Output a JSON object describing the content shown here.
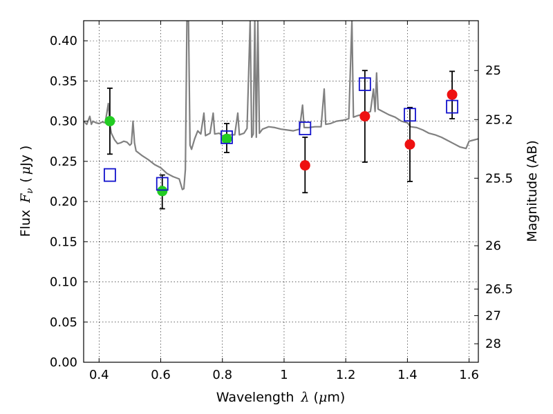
{
  "chart_data": {
    "type": "scatter",
    "xlabel": "Wavelength",
    "xlabel_symbol": "λ",
    "xlabel_unit_open": "(",
    "xlabel_unit_mu": "μ",
    "xlabel_unit_rest": "m)",
    "ylabel": "Flux",
    "ylabel_symbol": "F",
    "ylabel_subscript": "ν",
    "ylabel_unit_open": "(",
    "ylabel_unit_mu": "μ",
    "ylabel_unit_rest": "Jy )",
    "ylabel_right": "Magnitude (AB)",
    "xlim": [
      0.35,
      1.63
    ],
    "ylim": [
      0.0,
      0.425
    ],
    "grid": true,
    "x_ticks": [
      {
        "value": 0.4,
        "label": "0.4"
      },
      {
        "value": 0.6,
        "label": "0.6"
      },
      {
        "value": 0.8,
        "label": "0.8"
      },
      {
        "value": 1.0,
        "label": "1"
      },
      {
        "value": 1.2,
        "label": "1.2"
      },
      {
        "value": 1.4,
        "label": "1.4"
      },
      {
        "value": 1.6,
        "label": "1.6"
      }
    ],
    "y_ticks": [
      {
        "value": 0.0,
        "label": "0.00"
      },
      {
        "value": 0.05,
        "label": "0.05"
      },
      {
        "value": 0.1,
        "label": "0.10"
      },
      {
        "value": 0.15,
        "label": "0.15"
      },
      {
        "value": 0.2,
        "label": "0.20"
      },
      {
        "value": 0.25,
        "label": "0.25"
      },
      {
        "value": 0.3,
        "label": "0.30"
      },
      {
        "value": 0.35,
        "label": "0.35"
      },
      {
        "value": 0.4,
        "label": "0.40"
      }
    ],
    "right_ticks": [
      {
        "flux": 0.363,
        "label": "25"
      },
      {
        "flux": 0.302,
        "label": "25.2"
      },
      {
        "flux": 0.229,
        "label": "25.5"
      },
      {
        "flux": 0.145,
        "label": "26"
      },
      {
        "flux": 0.091,
        "label": "26.5"
      },
      {
        "flux": 0.058,
        "label": "27"
      },
      {
        "flux": 0.023,
        "label": "28"
      }
    ],
    "series": [
      {
        "kind": "line",
        "color": "#808080",
        "points": [
          [
            0.35,
            0.3
          ],
          [
            0.36,
            0.296
          ],
          [
            0.37,
            0.306
          ],
          [
            0.375,
            0.296
          ],
          [
            0.38,
            0.3
          ],
          [
            0.39,
            0.298
          ],
          [
            0.4,
            0.297
          ],
          [
            0.41,
            0.299
          ],
          [
            0.42,
            0.298
          ],
          [
            0.425,
            0.31
          ],
          [
            0.43,
            0.322
          ],
          [
            0.435,
            0.296
          ],
          [
            0.44,
            0.285
          ],
          [
            0.45,
            0.277
          ],
          [
            0.46,
            0.272
          ],
          [
            0.47,
            0.273
          ],
          [
            0.48,
            0.275
          ],
          [
            0.49,
            0.274
          ],
          [
            0.5,
            0.27
          ],
          [
            0.505,
            0.272
          ],
          [
            0.51,
            0.3
          ],
          [
            0.515,
            0.273
          ],
          [
            0.52,
            0.263
          ],
          [
            0.54,
            0.257
          ],
          [
            0.56,
            0.252
          ],
          [
            0.58,
            0.246
          ],
          [
            0.6,
            0.242
          ],
          [
            0.62,
            0.235
          ],
          [
            0.64,
            0.231
          ],
          [
            0.66,
            0.228
          ],
          [
            0.67,
            0.215
          ],
          [
            0.675,
            0.216
          ],
          [
            0.68,
            0.24
          ],
          [
            0.685,
            0.425
          ],
          [
            0.69,
            0.425
          ],
          [
            0.695,
            0.27
          ],
          [
            0.7,
            0.265
          ],
          [
            0.71,
            0.278
          ],
          [
            0.72,
            0.288
          ],
          [
            0.73,
            0.284
          ],
          [
            0.74,
            0.31
          ],
          [
            0.745,
            0.282
          ],
          [
            0.76,
            0.285
          ],
          [
            0.77,
            0.31
          ],
          [
            0.775,
            0.284
          ],
          [
            0.79,
            0.285
          ],
          [
            0.8,
            0.282
          ],
          [
            0.82,
            0.283
          ],
          [
            0.84,
            0.283
          ],
          [
            0.85,
            0.31
          ],
          [
            0.855,
            0.283
          ],
          [
            0.87,
            0.285
          ],
          [
            0.88,
            0.291
          ],
          [
            0.89,
            0.425
          ],
          [
            0.895,
            0.28
          ],
          [
            0.9,
            0.284
          ],
          [
            0.905,
            0.425
          ],
          [
            0.91,
            0.28
          ],
          [
            0.915,
            0.425
          ],
          [
            0.92,
            0.285
          ],
          [
            0.93,
            0.29
          ],
          [
            0.95,
            0.293
          ],
          [
            0.97,
            0.292
          ],
          [
            0.99,
            0.29
          ],
          [
            1.01,
            0.289
          ],
          [
            1.03,
            0.288
          ],
          [
            1.05,
            0.29
          ],
          [
            1.06,
            0.32
          ],
          [
            1.065,
            0.292
          ],
          [
            1.08,
            0.292
          ],
          [
            1.1,
            0.293
          ],
          [
            1.12,
            0.293
          ],
          [
            1.13,
            0.34
          ],
          [
            1.135,
            0.296
          ],
          [
            1.15,
            0.297
          ],
          [
            1.17,
            0.3
          ],
          [
            1.19,
            0.301
          ],
          [
            1.21,
            0.303
          ],
          [
            1.22,
            0.425
          ],
          [
            1.225,
            0.305
          ],
          [
            1.24,
            0.307
          ],
          [
            1.26,
            0.309
          ],
          [
            1.28,
            0.312
          ],
          [
            1.29,
            0.34
          ],
          [
            1.295,
            0.312
          ],
          [
            1.3,
            0.36
          ],
          [
            1.305,
            0.315
          ],
          [
            1.32,
            0.312
          ],
          [
            1.34,
            0.308
          ],
          [
            1.36,
            0.305
          ],
          [
            1.38,
            0.3
          ],
          [
            1.4,
            0.298
          ],
          [
            1.41,
            0.293
          ],
          [
            1.43,
            0.292
          ],
          [
            1.45,
            0.289
          ],
          [
            1.47,
            0.285
          ],
          [
            1.49,
            0.283
          ],
          [
            1.51,
            0.28
          ],
          [
            1.53,
            0.276
          ],
          [
            1.55,
            0.272
          ],
          [
            1.57,
            0.268
          ],
          [
            1.59,
            0.266
          ],
          [
            1.6,
            0.275
          ],
          [
            1.61,
            0.276
          ],
          [
            1.63,
            0.278
          ]
        ]
      },
      {
        "kind": "points",
        "marker": "circle",
        "color": "#22cc22",
        "points": [
          {
            "x": 0.435,
            "y": 0.3,
            "err": [
              0.259,
              0.341
            ]
          },
          {
            "x": 0.605,
            "y": 0.213,
            "err": [
              0.191,
              0.233
            ]
          },
          {
            "x": 0.814,
            "y": 0.278,
            "err": [
              0.261,
              0.297
            ]
          }
        ]
      },
      {
        "kind": "points",
        "marker": "circle",
        "color": "#ee1111",
        "points": [
          {
            "x": 1.068,
            "y": 0.245,
            "err": [
              0.211,
              0.28
            ]
          },
          {
            "x": 1.262,
            "y": 0.306,
            "err": [
              0.249,
              0.363
            ]
          },
          {
            "x": 1.408,
            "y": 0.271,
            "err": [
              0.225,
              0.317
            ]
          },
          {
            "x": 1.545,
            "y": 0.333,
            "err": [
              0.303,
              0.362
            ]
          }
        ]
      },
      {
        "kind": "points",
        "marker": "square",
        "color": "#1111cc",
        "points": [
          {
            "x": 0.435,
            "y": 0.233
          },
          {
            "x": 0.605,
            "y": 0.222
          },
          {
            "x": 0.814,
            "y": 0.28
          },
          {
            "x": 1.068,
            "y": 0.291
          },
          {
            "x": 1.262,
            "y": 0.346
          },
          {
            "x": 1.408,
            "y": 0.308
          },
          {
            "x": 1.545,
            "y": 0.318
          }
        ]
      }
    ]
  }
}
